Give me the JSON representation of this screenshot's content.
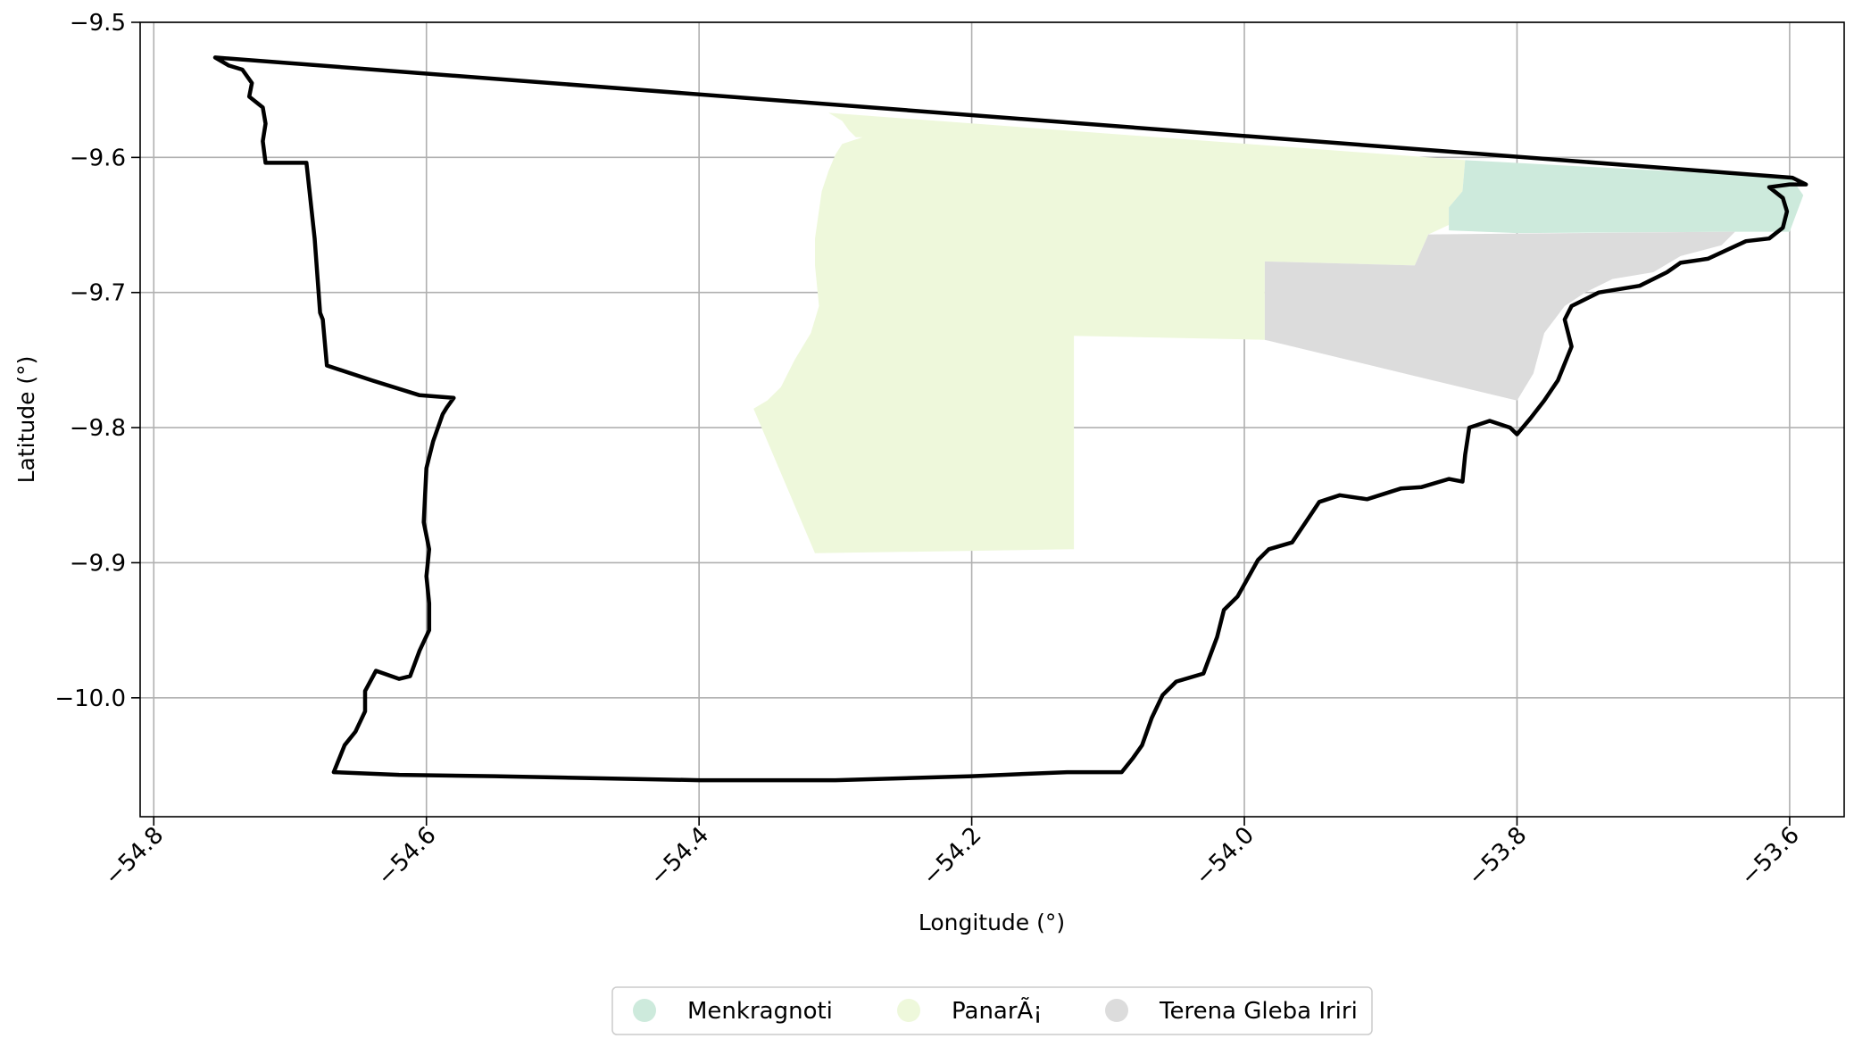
{
  "chart_data": {
    "type": "map",
    "title": "",
    "xlabel": "Longitude (°)",
    "ylabel": "Latitude (°)",
    "xlim": [
      -54.81,
      -53.56
    ],
    "ylim": [
      -10.088,
      -9.5
    ],
    "grid": true,
    "xticks": [
      {
        "value": -54.8,
        "label": "−54.8"
      },
      {
        "value": -54.6,
        "label": "−54.6"
      },
      {
        "value": -54.4,
        "label": "−54.4"
      },
      {
        "value": -54.2,
        "label": "−54.2"
      },
      {
        "value": -54.0,
        "label": "−54.0"
      },
      {
        "value": -53.8,
        "label": "−53.8"
      },
      {
        "value": -53.6,
        "label": "−53.6"
      }
    ],
    "yticks": [
      {
        "value": -9.5,
        "label": "−9.5"
      },
      {
        "value": -9.6,
        "label": "−9.6"
      },
      {
        "value": -9.7,
        "label": "−9.7"
      },
      {
        "value": -9.8,
        "label": "−9.8"
      },
      {
        "value": -9.9,
        "label": "−9.9"
      },
      {
        "value": -10.0,
        "label": "−10.0"
      }
    ],
    "legend": {
      "position": "bottom-center",
      "entries": [
        {
          "name": "Menkragnoti",
          "color": "#cdeadc"
        },
        {
          "name": "PanarÃ¡",
          "color": "#eef8db"
        },
        {
          "name": "Terena Gleba Iriri",
          "color": "#dcdcdc"
        }
      ]
    },
    "areas": [
      {
        "name": "PanarÃ¡",
        "color": "#eef8db",
        "coords": [
          [
            -54.305,
            -9.567
          ],
          [
            -54.295,
            -9.573
          ],
          [
            -54.29,
            -9.58
          ],
          [
            -54.285,
            -9.585
          ],
          [
            -54.28,
            -9.585
          ],
          [
            -54.295,
            -9.59
          ],
          [
            -54.3,
            -9.598
          ],
          [
            -54.305,
            -9.61
          ],
          [
            -54.31,
            -9.625
          ],
          [
            -54.315,
            -9.66
          ],
          [
            -54.315,
            -9.68
          ],
          [
            -54.312,
            -9.71
          ],
          [
            -54.318,
            -9.73
          ],
          [
            -54.33,
            -9.75
          ],
          [
            -54.34,
            -9.77
          ],
          [
            -54.35,
            -9.78
          ],
          [
            -54.36,
            -9.786
          ],
          [
            -54.315,
            -9.893
          ],
          [
            -54.125,
            -9.89
          ],
          [
            -54.125,
            -9.732
          ],
          [
            -53.985,
            -9.735
          ],
          [
            -53.985,
            -9.677
          ],
          [
            -53.875,
            -9.68
          ],
          [
            -53.865,
            -9.657
          ],
          [
            -53.85,
            -9.65
          ],
          [
            -53.85,
            -9.637
          ],
          [
            -53.84,
            -9.625
          ],
          [
            -53.838,
            -9.602
          ],
          [
            -54.305,
            -9.567
          ]
        ]
      },
      {
        "name": "Menkragnoti",
        "color": "#cdeadc",
        "coords": [
          [
            -53.838,
            -9.602
          ],
          [
            -53.599,
            -9.615
          ],
          [
            -53.59,
            -9.628
          ],
          [
            -53.6,
            -9.655
          ],
          [
            -53.64,
            -9.655
          ],
          [
            -53.8,
            -9.656
          ],
          [
            -53.85,
            -9.654
          ],
          [
            -53.85,
            -9.637
          ],
          [
            -53.84,
            -9.625
          ],
          [
            -53.838,
            -9.602
          ]
        ]
      },
      {
        "name": "Terena Gleba Iriri",
        "color": "#dcdcdc",
        "coords": [
          [
            -53.985,
            -9.677
          ],
          [
            -53.875,
            -9.68
          ],
          [
            -53.865,
            -9.657
          ],
          [
            -53.64,
            -9.655
          ],
          [
            -53.65,
            -9.665
          ],
          [
            -53.68,
            -9.673
          ],
          [
            -53.7,
            -9.685
          ],
          [
            -53.73,
            -9.69
          ],
          [
            -53.75,
            -9.7
          ],
          [
            -53.765,
            -9.71
          ],
          [
            -53.78,
            -9.73
          ],
          [
            -53.788,
            -9.76
          ],
          [
            -53.8,
            -9.78
          ],
          [
            -53.87,
            -9.763
          ],
          [
            -53.985,
            -9.735
          ],
          [
            -53.985,
            -9.677
          ]
        ]
      }
    ],
    "boundary": {
      "color": "#000000",
      "coords": [
        [
          -54.755,
          -9.526
        ],
        [
          -54.745,
          -9.532
        ],
        [
          -54.735,
          -9.535
        ],
        [
          -54.728,
          -9.545
        ],
        [
          -54.73,
          -9.555
        ],
        [
          -54.72,
          -9.563
        ],
        [
          -54.718,
          -9.575
        ],
        [
          -54.72,
          -9.588
        ],
        [
          -54.718,
          -9.604
        ],
        [
          -54.688,
          -9.604
        ],
        [
          -54.682,
          -9.66
        ],
        [
          -54.678,
          -9.715
        ],
        [
          -54.676,
          -9.72
        ],
        [
          -54.673,
          -9.754
        ],
        [
          -54.64,
          -9.765
        ],
        [
          -54.605,
          -9.776
        ],
        [
          -54.58,
          -9.778
        ],
        [
          -54.585,
          -9.785
        ],
        [
          -54.588,
          -9.79
        ],
        [
          -54.595,
          -9.81
        ],
        [
          -54.6,
          -9.83
        ],
        [
          -54.602,
          -9.87
        ],
        [
          -54.598,
          -9.89
        ],
        [
          -54.6,
          -9.91
        ],
        [
          -54.598,
          -9.93
        ],
        [
          -54.598,
          -9.95
        ],
        [
          -54.605,
          -9.965
        ],
        [
          -54.612,
          -9.984
        ],
        [
          -54.62,
          -9.986
        ],
        [
          -54.637,
          -9.98
        ],
        [
          -54.645,
          -9.995
        ],
        [
          -54.645,
          -10.01
        ],
        [
          -54.652,
          -10.025
        ],
        [
          -54.66,
          -10.035
        ],
        [
          -54.668,
          -10.055
        ],
        [
          -54.62,
          -10.057
        ],
        [
          -54.55,
          -10.058
        ],
        [
          -54.5,
          -10.059
        ],
        [
          -54.4,
          -10.061
        ],
        [
          -54.3,
          -10.061
        ],
        [
          -54.2,
          -10.058
        ],
        [
          -54.13,
          -10.055
        ],
        [
          -54.09,
          -10.055
        ],
        [
          -54.082,
          -10.045
        ],
        [
          -54.075,
          -10.035
        ],
        [
          -54.068,
          -10.015
        ],
        [
          -54.06,
          -9.998
        ],
        [
          -54.05,
          -9.988
        ],
        [
          -54.03,
          -9.982
        ],
        [
          -54.02,
          -9.955
        ],
        [
          -54.015,
          -9.935
        ],
        [
          -54.005,
          -9.925
        ],
        [
          -53.99,
          -9.898
        ],
        [
          -53.982,
          -9.89
        ],
        [
          -53.965,
          -9.885
        ],
        [
          -53.955,
          -9.87
        ],
        [
          -53.945,
          -9.855
        ],
        [
          -53.93,
          -9.85
        ],
        [
          -53.91,
          -9.853
        ],
        [
          -53.885,
          -9.845
        ],
        [
          -53.87,
          -9.844
        ],
        [
          -53.85,
          -9.838
        ],
        [
          -53.84,
          -9.84
        ],
        [
          -53.838,
          -9.82
        ],
        [
          -53.835,
          -9.8
        ],
        [
          -53.82,
          -9.795
        ],
        [
          -53.805,
          -9.8
        ],
        [
          -53.8,
          -9.805
        ],
        [
          -53.79,
          -9.793
        ],
        [
          -53.78,
          -9.78
        ],
        [
          -53.77,
          -9.765
        ],
        [
          -53.76,
          -9.74
        ],
        [
          -53.765,
          -9.72
        ],
        [
          -53.76,
          -9.71
        ],
        [
          -53.74,
          -9.7
        ],
        [
          -53.71,
          -9.695
        ],
        [
          -53.69,
          -9.685
        ],
        [
          -53.68,
          -9.678
        ],
        [
          -53.66,
          -9.675
        ],
        [
          -53.645,
          -9.668
        ],
        [
          -53.632,
          -9.662
        ],
        [
          -53.615,
          -9.66
        ],
        [
          -53.605,
          -9.652
        ],
        [
          -53.602,
          -9.64
        ],
        [
          -53.605,
          -9.63
        ],
        [
          -53.615,
          -9.622
        ],
        [
          -53.6,
          -9.62
        ],
        [
          -53.588,
          -9.62
        ],
        [
          -53.598,
          -9.615
        ],
        [
          -54.755,
          -9.526
        ]
      ]
    }
  }
}
